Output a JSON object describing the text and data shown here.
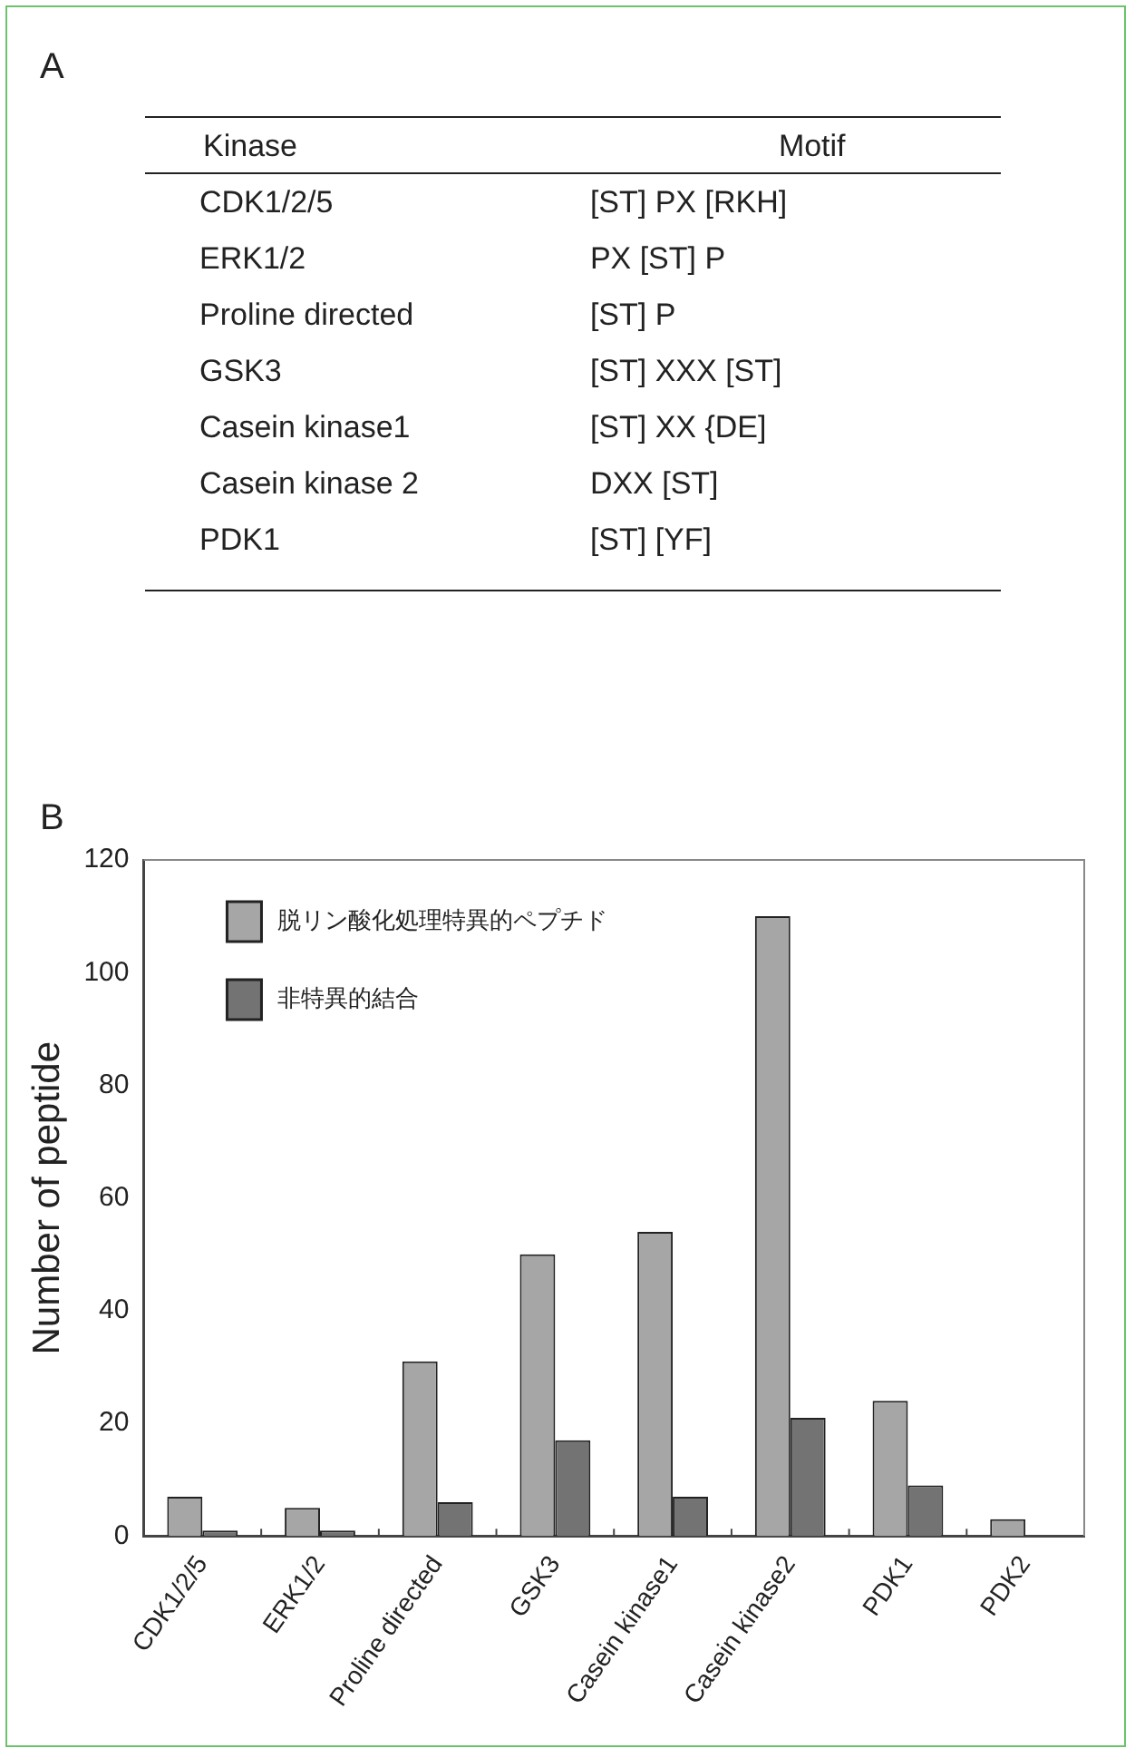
{
  "chart_data": [
    {
      "type": "other",
      "title": "A",
      "annotations": [
        "Kinase",
        "Motif",
        "CDK1/2/5",
        "[ST] PX [RKH]",
        "ERK1/2",
        "PX [ST] P",
        "Proline directed",
        "[ST] P",
        "GSK3",
        "[ST] XXX [ST]",
        "Casein kinase1",
        "[ST] XX {DE]",
        "Casein kinase 2",
        "DXX [ST]",
        "PDK1",
        "[ST] [YF]"
      ]
    },
    {
      "type": "bar",
      "title": "B",
      "ylabel": "Number of peptide",
      "categories": [
        "CDK1/2/5",
        "ERK1/2",
        "Proline directed",
        "GSK3",
        "Casein kinase1",
        "Casein kinase2",
        "PDK1",
        "PDK2"
      ],
      "series": [
        {
          "name": "脱リン酸化処理特異的ペプチド",
          "color": "#a6a6a6",
          "values": [
            7,
            5,
            31,
            50,
            54,
            110,
            24,
            3
          ]
        },
        {
          "name": "非特異的結合",
          "color": "#737373",
          "values": [
            1,
            1,
            6,
            17,
            7,
            21,
            9,
            null
          ]
        }
      ],
      "ylim": [
        0,
        120
      ],
      "yticks": [
        0,
        20,
        40,
        60,
        80,
        100,
        120
      ],
      "grid": false,
      "legend": "top left"
    }
  ]
}
